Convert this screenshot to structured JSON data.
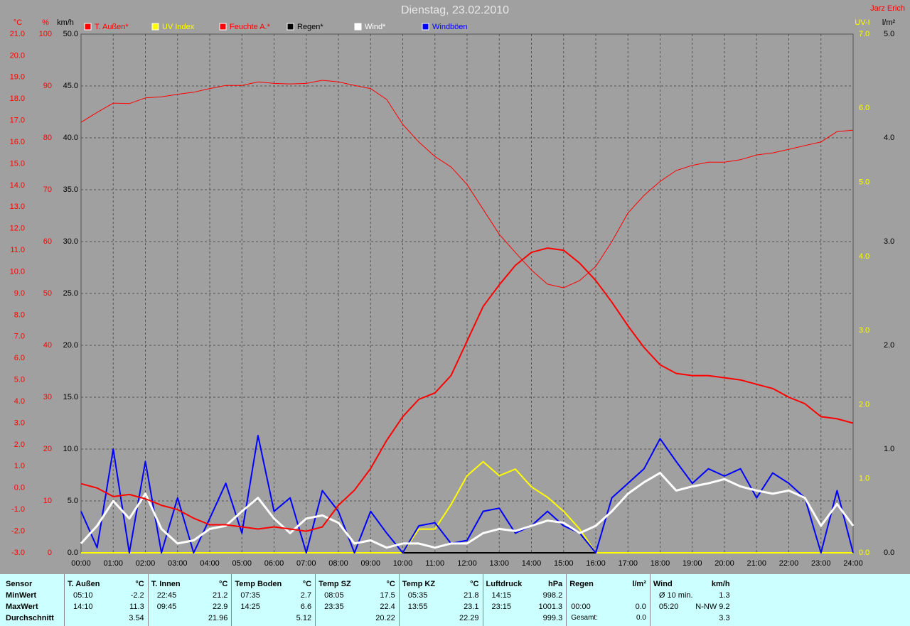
{
  "chart_data": {
    "type": "line",
    "title": "Dienstag, 23.02.2010",
    "author": "Jarz Erich",
    "ylabel": "°C",
    "y2label": "%",
    "y3label": "km/h",
    "y4label": "UV-I",
    "y5label": "l/m²",
    "grid": true,
    "x": [
      0,
      0.5,
      1,
      1.5,
      2,
      2.5,
      3,
      3.5,
      4,
      4.5,
      5,
      5.5,
      6,
      6.5,
      7,
      7.5,
      8,
      8.5,
      9,
      9.5,
      10,
      10.5,
      11,
      11.5,
      12,
      12.5,
      13,
      13.5,
      14,
      14.5,
      15,
      15.5,
      16,
      16.5,
      17,
      17.5,
      18,
      18.5,
      19,
      19.5,
      20,
      20.5,
      21,
      21.5,
      22,
      22.5,
      23,
      23.5,
      24
    ],
    "xlim": [
      0,
      24
    ],
    "xticks": [
      {
        "value": 0,
        "label": "00:00"
      },
      {
        "value": 1,
        "label": "01:00"
      },
      {
        "value": 2,
        "label": "02:00"
      },
      {
        "value": 3,
        "label": "03:00"
      },
      {
        "value": 4,
        "label": "04:00"
      },
      {
        "value": 5,
        "label": "05:00"
      },
      {
        "value": 6,
        "label": "06:00"
      },
      {
        "value": 7,
        "label": "07:00"
      },
      {
        "value": 8,
        "label": "08:00"
      },
      {
        "value": 9,
        "label": "09:00"
      },
      {
        "value": 10,
        "label": "10:00"
      },
      {
        "value": 11,
        "label": "11:00"
      },
      {
        "value": 12,
        "label": "12:00"
      },
      {
        "value": 13,
        "label": "13:00"
      },
      {
        "value": 14,
        "label": "14:00"
      },
      {
        "value": 15,
        "label": "15:00"
      },
      {
        "value": 16,
        "label": "16:00"
      },
      {
        "value": 17,
        "label": "17:00"
      },
      {
        "value": 18,
        "label": "18:00"
      },
      {
        "value": 19,
        "label": "19:00"
      },
      {
        "value": 20,
        "label": "20:00"
      },
      {
        "value": 21,
        "label": "21:00"
      },
      {
        "value": 22,
        "label": "22:00"
      },
      {
        "value": 23,
        "label": "23:00"
      },
      {
        "value": 24,
        "label": "24:00"
      }
    ],
    "ylim": [
      -3,
      21
    ],
    "yticks": [
      {
        "value": -3,
        "label": "-3.0"
      },
      {
        "value": -2,
        "label": "-2.0"
      },
      {
        "value": -1,
        "label": "-1.0"
      },
      {
        "value": 0,
        "label": "0.0"
      },
      {
        "value": 1,
        "label": "1.0"
      },
      {
        "value": 2,
        "label": "2.0"
      },
      {
        "value": 3,
        "label": "3.0"
      },
      {
        "value": 4,
        "label": "4.0"
      },
      {
        "value": 5,
        "label": "5.0"
      },
      {
        "value": 6,
        "label": "6.0"
      },
      {
        "value": 7,
        "label": "7.0"
      },
      {
        "value": 8,
        "label": "8.0"
      },
      {
        "value": 9,
        "label": "9.0"
      },
      {
        "value": 10,
        "label": "10.0"
      },
      {
        "value": 11,
        "label": "11.0"
      },
      {
        "value": 12,
        "label": "12.0"
      },
      {
        "value": 13,
        "label": "13.0"
      },
      {
        "value": 14,
        "label": "14.0"
      },
      {
        "value": 15,
        "label": "15.0"
      },
      {
        "value": 16,
        "label": "16.0"
      },
      {
        "value": 17,
        "label": "17.0"
      },
      {
        "value": 18,
        "label": "18.0"
      },
      {
        "value": 19,
        "label": "19.0"
      },
      {
        "value": 20,
        "label": "20.0"
      },
      {
        "value": 21,
        "label": "21.0"
      }
    ],
    "y2lim": [
      0,
      100
    ],
    "y2ticks": [
      0,
      10,
      20,
      30,
      40,
      50,
      60,
      70,
      80,
      90,
      100
    ],
    "y3lim": [
      0,
      50
    ],
    "y3ticks": [
      {
        "value": 0,
        "label": "0.0"
      },
      {
        "value": 5,
        "label": "5.0"
      },
      {
        "value": 10,
        "label": "10.0"
      },
      {
        "value": 15,
        "label": "15.0"
      },
      {
        "value": 20,
        "label": "20.0"
      },
      {
        "value": 25,
        "label": "25.0"
      },
      {
        "value": 30,
        "label": "30.0"
      },
      {
        "value": 35,
        "label": "35.0"
      },
      {
        "value": 40,
        "label": "40.0"
      },
      {
        "value": 45,
        "label": "45.0"
      },
      {
        "value": 50,
        "label": "50.0"
      }
    ],
    "y4lim": [
      0,
      7
    ],
    "y4ticks": [
      {
        "value": 0,
        "label": "0.0"
      },
      {
        "value": 1,
        "label": "1.0"
      },
      {
        "value": 2,
        "label": "2.0"
      },
      {
        "value": 3,
        "label": "3.0"
      },
      {
        "value": 4,
        "label": "4.0"
      },
      {
        "value": 5,
        "label": "5.0"
      },
      {
        "value": 6,
        "label": "6.0"
      },
      {
        "value": 7,
        "label": "7.0"
      }
    ],
    "y5lim": [
      0,
      5
    ],
    "y5ticks": [
      {
        "value": 0,
        "label": "0.0"
      },
      {
        "value": 1,
        "label": "1.0"
      },
      {
        "value": 2,
        "label": "2.0"
      },
      {
        "value": 3,
        "label": "3.0"
      },
      {
        "value": 4,
        "label": "4.0"
      },
      {
        "value": 5,
        "label": "5.0"
      }
    ],
    "series": [
      {
        "name": "T. Außen*",
        "color": "#ff0000",
        "axis": "y",
        "width": 2,
        "values": [
          0.2,
          0.0,
          -0.4,
          -0.3,
          -0.5,
          -0.8,
          -1.0,
          -1.4,
          -1.7,
          -1.7,
          -1.8,
          -1.9,
          -1.8,
          -1.9,
          -2.0,
          -1.8,
          -0.8,
          -0.1,
          0.9,
          2.2,
          3.3,
          4.1,
          4.4,
          5.2,
          6.8,
          8.4,
          9.4,
          10.3,
          10.9,
          11.1,
          11.0,
          10.4,
          9.6,
          8.6,
          7.5,
          6.5,
          5.7,
          5.3,
          5.2,
          5.2,
          5.1,
          5.0,
          4.8,
          4.6,
          4.2,
          3.9,
          3.3,
          3.2,
          3.0
        ]
      },
      {
        "name": "UV Index",
        "color": "#ffff00",
        "axis": "y4",
        "width": 2,
        "values": [
          0,
          0,
          0,
          0,
          0,
          0,
          0,
          0,
          0,
          0,
          0,
          0,
          0,
          0,
          0,
          0,
          0,
          0,
          0,
          0,
          0,
          0.32,
          0.32,
          0.65,
          1.04,
          1.23,
          1.04,
          1.13,
          0.89,
          0.75,
          0.56,
          0.32,
          0,
          0,
          0,
          0,
          0,
          0,
          0,
          0,
          0,
          0,
          0,
          0,
          0,
          0,
          0,
          0,
          0
        ]
      },
      {
        "name": "Feuchte A.*",
        "color": "#ff0000",
        "axis": "y2",
        "width": 1,
        "values": [
          83.0,
          84.9,
          86.7,
          86.6,
          87.7,
          87.9,
          88.4,
          88.8,
          89.5,
          90.1,
          90.1,
          90.8,
          90.5,
          90.4,
          90.5,
          91.1,
          90.8,
          90.1,
          89.5,
          87.4,
          82.6,
          79.2,
          76.4,
          74.4,
          71.0,
          66.2,
          61.4,
          57.9,
          54.5,
          51.8,
          51.1,
          52.5,
          55.2,
          60.0,
          65.5,
          68.9,
          71.6,
          73.7,
          74.7,
          75.3,
          75.3,
          75.8,
          76.7,
          77.1,
          77.8,
          78.5,
          79.2,
          81.2,
          81.5
        ]
      },
      {
        "name": "Regen*",
        "color": "#000000",
        "axis": "y5",
        "width": 2,
        "values": [
          0,
          0,
          0,
          0,
          0,
          0,
          0,
          0,
          0,
          0,
          0,
          0,
          0,
          0,
          0,
          0,
          0,
          0,
          0,
          0,
          0,
          0,
          0,
          0,
          0,
          0,
          0,
          0,
          0,
          0,
          0,
          0,
          0,
          0,
          0,
          0,
          0,
          0,
          0,
          0,
          0,
          0,
          0,
          0,
          0,
          0,
          0,
          0,
          0
        ]
      },
      {
        "name": "Wind*",
        "color": "#ffffff",
        "axis": "y3",
        "width": 3,
        "values": [
          0.9,
          2.6,
          5.0,
          3.3,
          5.7,
          2.3,
          0.9,
          1.2,
          2.3,
          2.6,
          4.0,
          5.3,
          3.3,
          1.9,
          3.3,
          3.6,
          2.9,
          0.9,
          1.2,
          0.5,
          0.9,
          0.9,
          0.5,
          0.9,
          0.9,
          1.9,
          2.3,
          2.1,
          2.6,
          3.1,
          2.9,
          1.9,
          2.6,
          4.0,
          5.7,
          6.8,
          7.7,
          6.0,
          6.4,
          6.7,
          7.1,
          6.4,
          6.0,
          5.7,
          6.0,
          5.3,
          2.6,
          4.7,
          2.6
        ]
      },
      {
        "name": "Windböen",
        "color": "#0000ff",
        "axis": "y3",
        "width": 2,
        "values": [
          4.0,
          0.5,
          10.0,
          0,
          8.8,
          0,
          5.3,
          0,
          3.3,
          6.7,
          1.9,
          11.3,
          4.0,
          5.3,
          0,
          6.0,
          4.0,
          0,
          4.0,
          1.9,
          0,
          2.6,
          2.9,
          0.9,
          1.2,
          4.0,
          4.3,
          1.9,
          2.6,
          4.0,
          2.6,
          1.9,
          0,
          5.3,
          6.7,
          8.1,
          11.0,
          8.8,
          6.7,
          8.1,
          7.4,
          8.1,
          5.3,
          7.7,
          6.7,
          5.3,
          0,
          6.0,
          0
        ]
      }
    ]
  },
  "table": {
    "row_labels": [
      "Sensor",
      "MinWert",
      "MaxWert",
      "Durchschnitt"
    ],
    "sections": [
      {
        "title": "T. Außen",
        "unit": "°C",
        "min": [
          "05:10",
          "-2.2"
        ],
        "max": [
          "14:10",
          "11.3"
        ],
        "avg": [
          "3.54"
        ]
      },
      {
        "title": "T. Innen",
        "unit": "°C",
        "min": [
          "22:45",
          "21.2"
        ],
        "max": [
          "09:45",
          "22.9"
        ],
        "avg": [
          "21.96"
        ]
      },
      {
        "title": "Temp Boden",
        "unit": "°C",
        "min": [
          "07:35",
          "2.7"
        ],
        "max": [
          "14:25",
          "6.6"
        ],
        "avg": [
          "5.12"
        ]
      },
      {
        "title": "Temp SZ",
        "unit": "°C",
        "min": [
          "08:05",
          "17.5"
        ],
        "max": [
          "23:35",
          "22.4"
        ],
        "avg": [
          "20.22"
        ]
      },
      {
        "title": "Temp KZ",
        "unit": "°C",
        "min": [
          "05:35",
          "21.8"
        ],
        "max": [
          "13:55",
          "23.1"
        ],
        "avg": [
          "22.29"
        ]
      },
      {
        "title": "Luftdruck",
        "unit": "hPa",
        "min": [
          "14:15",
          "998.2"
        ],
        "max": [
          "23:15",
          "1001.3"
        ],
        "avg": [
          "999.3"
        ]
      },
      {
        "title": "Regen",
        "unit": "l/m²",
        "min": [],
        "max": [
          "00:00",
          "0.0"
        ],
        "avg": [
          "Gesamt:",
          "0.0"
        ]
      },
      {
        "title": "Wind",
        "unit": "km/h",
        "min": [
          "Ø 10 min.",
          "1.3"
        ],
        "max": [
          "05:20",
          "N-NW 9.2"
        ],
        "avg": [
          "3.3"
        ]
      }
    ]
  }
}
